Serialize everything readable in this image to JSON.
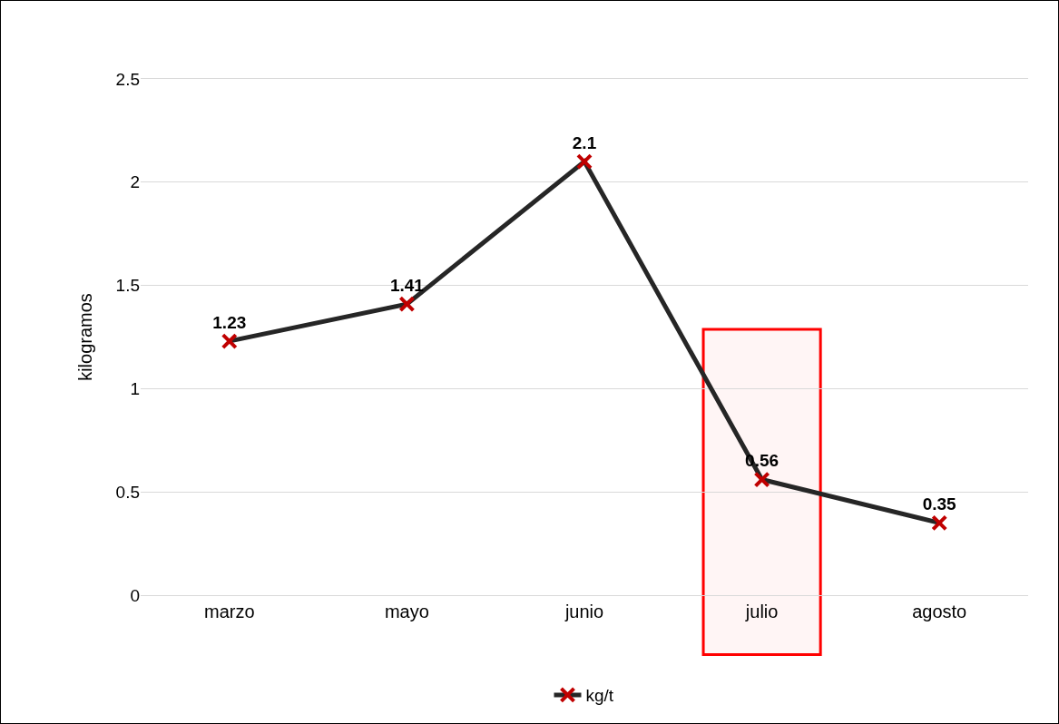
{
  "chart_data": {
    "type": "line",
    "ylabel": "kilogramos",
    "categories": [
      "marzo",
      "mayo",
      "junio",
      "julio",
      "agosto"
    ],
    "series": [
      {
        "name": "kg/t",
        "color": "#c00000",
        "values": [
          1.23,
          1.41,
          2.1,
          0.56,
          0.35
        ]
      }
    ],
    "ylim": [
      0,
      2.5
    ],
    "yticks": [
      0,
      0.5,
      1,
      1.5,
      2,
      2.5
    ],
    "grid": "y",
    "legend": "bottom",
    "marker": "cross",
    "line_style": "solid",
    "data_labels": true,
    "bands": [
      {
        "axis": "x",
        "from": "julio",
        "to": "julio",
        "color": "#ff0000"
      }
    ]
  }
}
